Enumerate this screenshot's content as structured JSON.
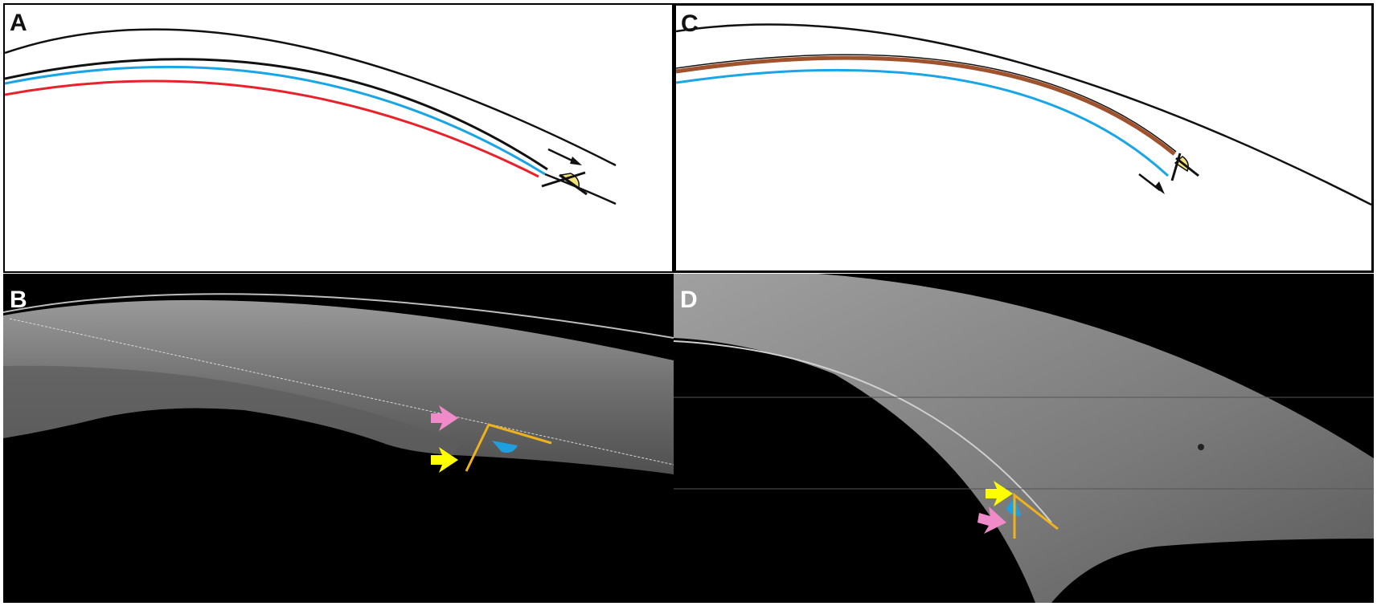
{
  "figure": {
    "panels": [
      {
        "id": "a",
        "label": "A",
        "kind": "schematic"
      },
      {
        "id": "c",
        "label": "C",
        "kind": "schematic"
      },
      {
        "id": "b",
        "label": "B",
        "kind": "oct-scan"
      },
      {
        "id": "d",
        "label": "D",
        "kind": "oct-scan"
      }
    ]
  },
  "colors": {
    "outline": "#111111",
    "blue_line": "#1aa6e6",
    "red_line": "#e8222a",
    "brown_line": "#a0522d",
    "angle_fill_yellow": "#f3e27a",
    "angle_fill_blue": "#1e9fe0",
    "angle_lines": "#f0b21c",
    "arrow_yellow": "#ffff00",
    "arrow_pink": "#f08ac8"
  },
  "icons": {
    "direction_arrow": "arrow-icon",
    "pink_pointer": "pink-arrow-icon",
    "yellow_pointer": "yellow-arrow-icon"
  }
}
